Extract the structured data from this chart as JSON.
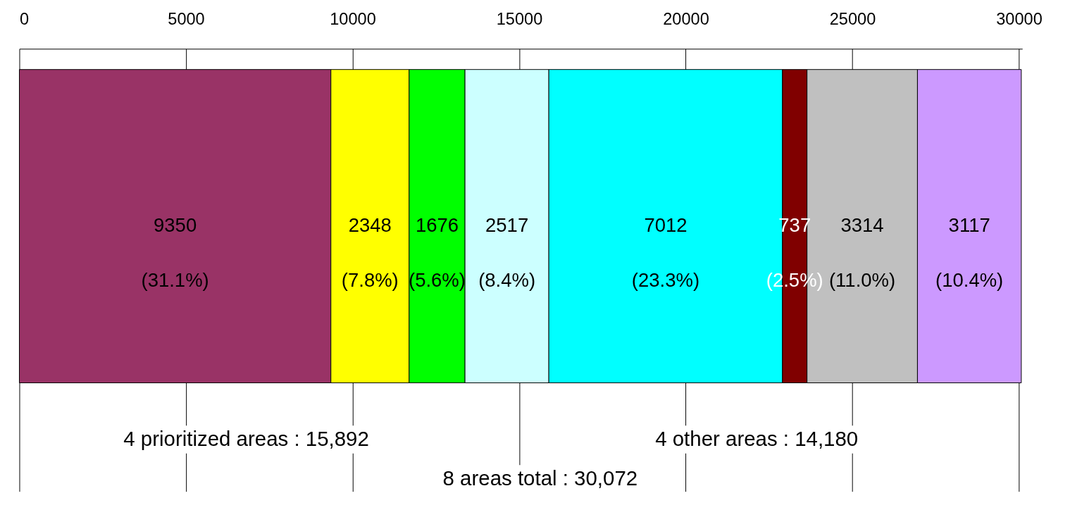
{
  "chart_data": {
    "type": "bar",
    "orientation": "horizontal",
    "stacked": true,
    "categories": [
      null
    ],
    "series": [
      {
        "color": "#993366",
        "values": [
          9350
        ],
        "value_labels": [
          "9350\n(31.1%)"
        ]
      },
      {
        "color": "#ffff00",
        "values": [
          2348
        ],
        "value_labels": [
          "2348\n(7.8%)"
        ]
      },
      {
        "color": "#00ff00",
        "values": [
          1676
        ],
        "value_labels": [
          "1676\n(5.6%)"
        ]
      },
      {
        "color": "#ccffff",
        "values": [
          2517
        ],
        "value_labels": [
          "2517\n(8.4%)"
        ]
      },
      {
        "color": "#00ffff",
        "values": [
          7012
        ],
        "value_labels": [
          "7012\n(23.3%)"
        ]
      },
      {
        "color": "#800000",
        "values": [
          737
        ],
        "value_labels": [
          "737\n(2.5%)"
        ]
      },
      {
        "color": "#c0c0c0",
        "values": [
          3314
        ],
        "value_labels": [
          "3314\n(11.0%)"
        ]
      },
      {
        "color": "#cc99ff",
        "values": [
          3117
        ],
        "value_labels": [
          "3117\n(10.4%)"
        ]
      }
    ],
    "xlim": [
      0,
      30100
    ],
    "xticks": [
      0,
      5000,
      10000,
      15000,
      20000,
      25000,
      30000
    ],
    "grid": true,
    "annotations": [
      "4 prioritized areas : 15,892",
      "4 other areas : 14,180",
      "8 areas total : 30,072"
    ]
  }
}
